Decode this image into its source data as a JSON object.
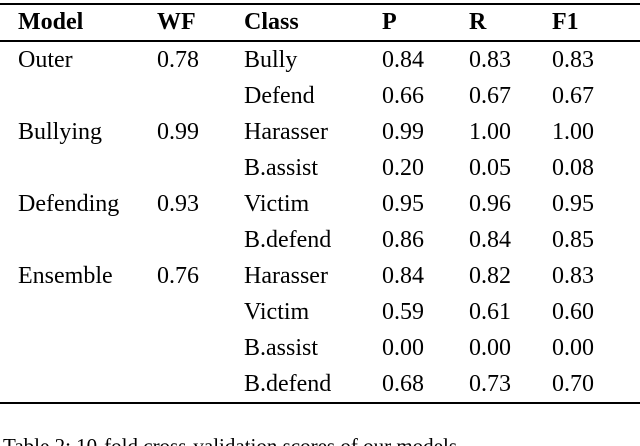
{
  "table": {
    "headers": {
      "model": "Model",
      "wf": "WF",
      "class": "Class",
      "p": "P",
      "r": "R",
      "f1": "F1"
    },
    "rows": [
      {
        "model": "Outer",
        "wf": "0.78",
        "class": "Bully",
        "p": "0.84",
        "r": "0.83",
        "f1": "0.83"
      },
      {
        "model": "",
        "wf": "",
        "class": "Defend",
        "p": "0.66",
        "r": "0.67",
        "f1": "0.67"
      },
      {
        "model": "Bullying",
        "wf": "0.99",
        "class": "Harasser",
        "p": "0.99",
        "r": "1.00",
        "f1": "1.00"
      },
      {
        "model": "",
        "wf": "",
        "class": "B.assist",
        "p": "0.20",
        "r": "0.05",
        "f1": "0.08"
      },
      {
        "model": "Defending",
        "wf": "0.93",
        "class": "Victim",
        "p": "0.95",
        "r": "0.96",
        "f1": "0.95"
      },
      {
        "model": "",
        "wf": "",
        "class": "B.defend",
        "p": "0.86",
        "r": "0.84",
        "f1": "0.85"
      },
      {
        "model": "Ensemble",
        "wf": "0.76",
        "class": "Harasser",
        "p": "0.84",
        "r": "0.82",
        "f1": "0.83"
      },
      {
        "model": "",
        "wf": "",
        "class": "Victim",
        "p": "0.59",
        "r": "0.61",
        "f1": "0.60"
      },
      {
        "model": "",
        "wf": "",
        "class": "B.assist",
        "p": "0.00",
        "r": "0.00",
        "f1": "0.00"
      },
      {
        "model": "",
        "wf": "",
        "class": "B.defend",
        "p": "0.68",
        "r": "0.73",
        "f1": "0.70"
      }
    ]
  },
  "caption": "Table 2: 10-fold cross-validation scores of our models",
  "colors": {
    "text": "#000000",
    "background": "#ffffff",
    "rule": "#000000"
  }
}
